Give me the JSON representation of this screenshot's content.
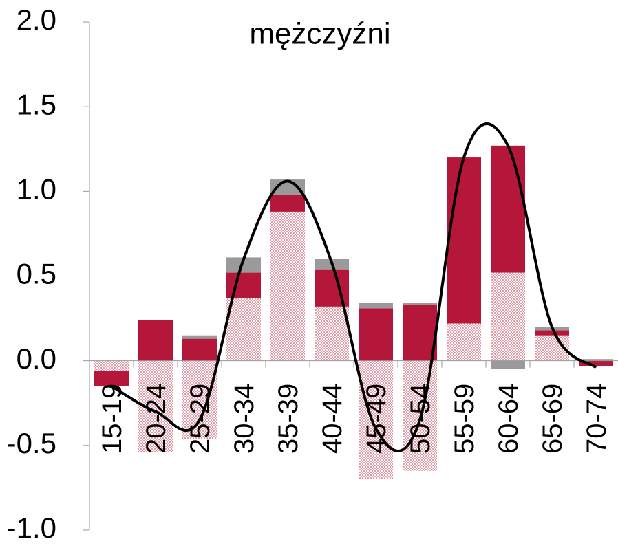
{
  "chart_data": {
    "type": "bar",
    "stacked": true,
    "title": "mężczyźni",
    "categories": [
      "15-19",
      "20-24",
      "25-29",
      "30-34",
      "35-39",
      "40-44",
      "45-49",
      "50-54",
      "55-59",
      "60-64",
      "65-69",
      "70-74"
    ],
    "series": [
      {
        "color": "#e79aa6",
        "pattern": "checker",
        "values": [
          -0.06,
          -0.54,
          -0.46,
          0.37,
          0.88,
          0.32,
          -0.7,
          -0.65,
          0.22,
          0.52,
          0.15,
          0
        ]
      },
      {
        "color": "#b5173a",
        "values": [
          -0.09,
          0.24,
          0.13,
          0.15,
          0.1,
          0.22,
          0.31,
          0.33,
          0.98,
          0.75,
          0.03,
          -0.03
        ]
      },
      {
        "color": "#9a9a9a",
        "values": [
          0,
          0,
          0.02,
          0.09,
          0.09,
          0.06,
          0.03,
          0.01,
          0,
          -0.05,
          0.02,
          0.01
        ]
      }
    ],
    "line": {
      "type": "line",
      "color": "#000000",
      "values": [
        -0.15,
        -0.3,
        -0.35,
        0.6,
        1.06,
        0.58,
        -0.4,
        -0.35,
        1.2,
        1.27,
        0.2,
        -0.04
      ]
    },
    "ylim": [
      -1.0,
      2.0
    ],
    "yticks": [
      {
        "value": -1.0,
        "label": "-1.0"
      },
      {
        "value": -0.5,
        "label": "-0.5"
      },
      {
        "value": 0,
        "label": "0.0"
      },
      {
        "value": 0.5,
        "label": "0.5"
      },
      {
        "value": 1.0,
        "label": "1.0"
      },
      {
        "value": 1.5,
        "label": "1.5"
      },
      {
        "value": 2.0,
        "label": "2.0"
      }
    ]
  }
}
